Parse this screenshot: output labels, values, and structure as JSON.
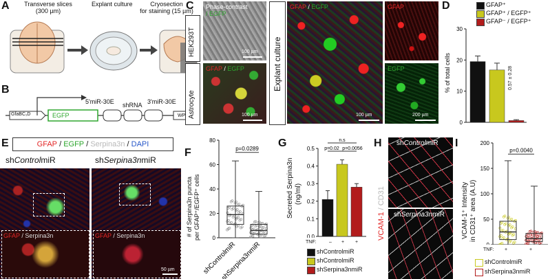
{
  "panels": {
    "A": {
      "letter": "A",
      "steps": [
        "Transverse slices",
        "Explant culture",
        "Cryosection"
      ],
      "step_sub": [
        "(300 µm)",
        "",
        "for staining (15 µm)"
      ]
    },
    "B": {
      "letter": "B",
      "promoter": "GfaBC₁D",
      "reporter": "EGFP",
      "mir5": "5'miR-30E",
      "shrna": "shRNA",
      "mir3": "3'miR-30E",
      "wpre": "WPRE"
    },
    "C": {
      "letter": "C",
      "rowlabels": [
        "HEK293T",
        "Astrocyte"
      ],
      "explant_label": "Explant culture",
      "phase_title": "Phase-contrast",
      "phase_egfp": "/ EGFP",
      "gfap": "GFAP",
      "slash": "/",
      "egfp": "EGFP",
      "scale_100": "100 µm",
      "scale_200": "200 µm"
    },
    "D": {
      "letter": "D",
      "legend": [
        "GFAP⁺",
        "GFAP⁺ / EGFP⁺",
        "GFAP⁻ / EGFP⁺"
      ],
      "ylabel": "% of total cells",
      "annotation": "0.57 ± 0.28",
      "colors": [
        "#111111",
        "#c8c81e",
        "#b21c1c"
      ]
    },
    "E": {
      "letter": "E",
      "header_gfap": "GFAP",
      "header_egfp": "EGFP",
      "header_serp": "Serpina3n",
      "header_dapi": "DAPI",
      "sep": " / ",
      "col1_pre": "sh",
      "col1_it": "Control",
      "col1_post": "miR",
      "col2_pre": "sh",
      "col2_it": "Serpina3n",
      "col2_post": "miR",
      "inset_gfap": "GFAP",
      "inset_serp": "/ Serpina3n",
      "scale": "50 µm"
    },
    "F": {
      "letter": "F",
      "ylabel_1": "# of Serpina3n puncta",
      "ylabel_2": "per GFAP⁺/EGFP⁺ cells",
      "pvalue": "p=0.0289",
      "xlabels": [
        "shControlmiR",
        "shSerpina3nmiR"
      ]
    },
    "G": {
      "letter": "G",
      "ylabel_1": "Secreted Serpina3n",
      "ylabel_2": "(ng/ml)",
      "ns": "n.s",
      "p1": "p=0.02",
      "p2": "p=0.0056",
      "tnf_label": "TNF:",
      "tnf_values": [
        "–",
        "+",
        "+"
      ],
      "legend": [
        "shControlmiR",
        "shControlmiR",
        "shSerpina3nmiR"
      ]
    },
    "H": {
      "letter": "H",
      "vlabel_vcam": "VCAM-1",
      "vlabel_cd31": " / CD31",
      "top_label_pre": "sh",
      "top_label_it": "Control",
      "top_label_post": "miR",
      "bot_label_pre": "sh",
      "bot_label_it": "Serpina3n",
      "bot_label_post": "miR"
    },
    "I": {
      "letter": "I",
      "ylabel_1": "VCAM-1⁺ Intensity",
      "ylabel_2": "in CD31⁺ area (A.U)",
      "pvalue": "p=0.0040",
      "tnf_label": "TNF:",
      "tnf_values": [
        "+",
        "+"
      ],
      "legend": [
        "shControlmiR",
        "shSerpina3nmiR"
      ]
    }
  },
  "chart_data": [
    {
      "panel": "D",
      "type": "bar",
      "categories": [
        "GFAP⁺",
        "GFAP⁺ / EGFP⁺",
        "GFAP⁻ / EGFP⁺"
      ],
      "values": [
        19.5,
        16.8,
        0.57
      ],
      "errors": [
        1.8,
        2.2,
        0.28
      ],
      "ylabel": "% of total cells",
      "ylim": [
        0,
        30
      ],
      "yticks": [
        0,
        10,
        20,
        30
      ]
    },
    {
      "panel": "F",
      "type": "box",
      "categories": [
        "shControlmiR",
        "shSerpina3nmiR"
      ],
      "box": [
        {
          "min": 0,
          "q1": 11,
          "median": 19,
          "q3": 26,
          "max": 63
        },
        {
          "min": 0,
          "q1": 3,
          "median": 6,
          "q3": 11,
          "max": 38
        }
      ],
      "ylim": [
        0,
        80
      ],
      "yticks": [
        0,
        20,
        40,
        60,
        80
      ]
    },
    {
      "panel": "G",
      "type": "bar",
      "categories": [
        "shControlmiR",
        "shControlmiR",
        "shSerpina3nmiR"
      ],
      "values": [
        0.21,
        0.41,
        0.28
      ],
      "errors": [
        0.05,
        0.025,
        0.02
      ],
      "ylim": [
        0,
        0.5
      ],
      "yticks": [
        0.0,
        0.1,
        0.2,
        0.3,
        0.4,
        0.5
      ],
      "colors": [
        "#111111",
        "#c8c81e",
        "#b21c1c"
      ]
    },
    {
      "panel": "I",
      "type": "box",
      "categories": [
        "shControlmiR",
        "shSerpina3nmiR"
      ],
      "box": [
        {
          "min": 0,
          "q1": 10,
          "median": 25,
          "q3": 46,
          "max": 165
        },
        {
          "min": 0,
          "q1": 6,
          "median": 12,
          "q3": 22,
          "max": 115
        }
      ],
      "ylim": [
        0,
        200
      ],
      "yticks": [
        0,
        50,
        100,
        150,
        200
      ]
    }
  ]
}
